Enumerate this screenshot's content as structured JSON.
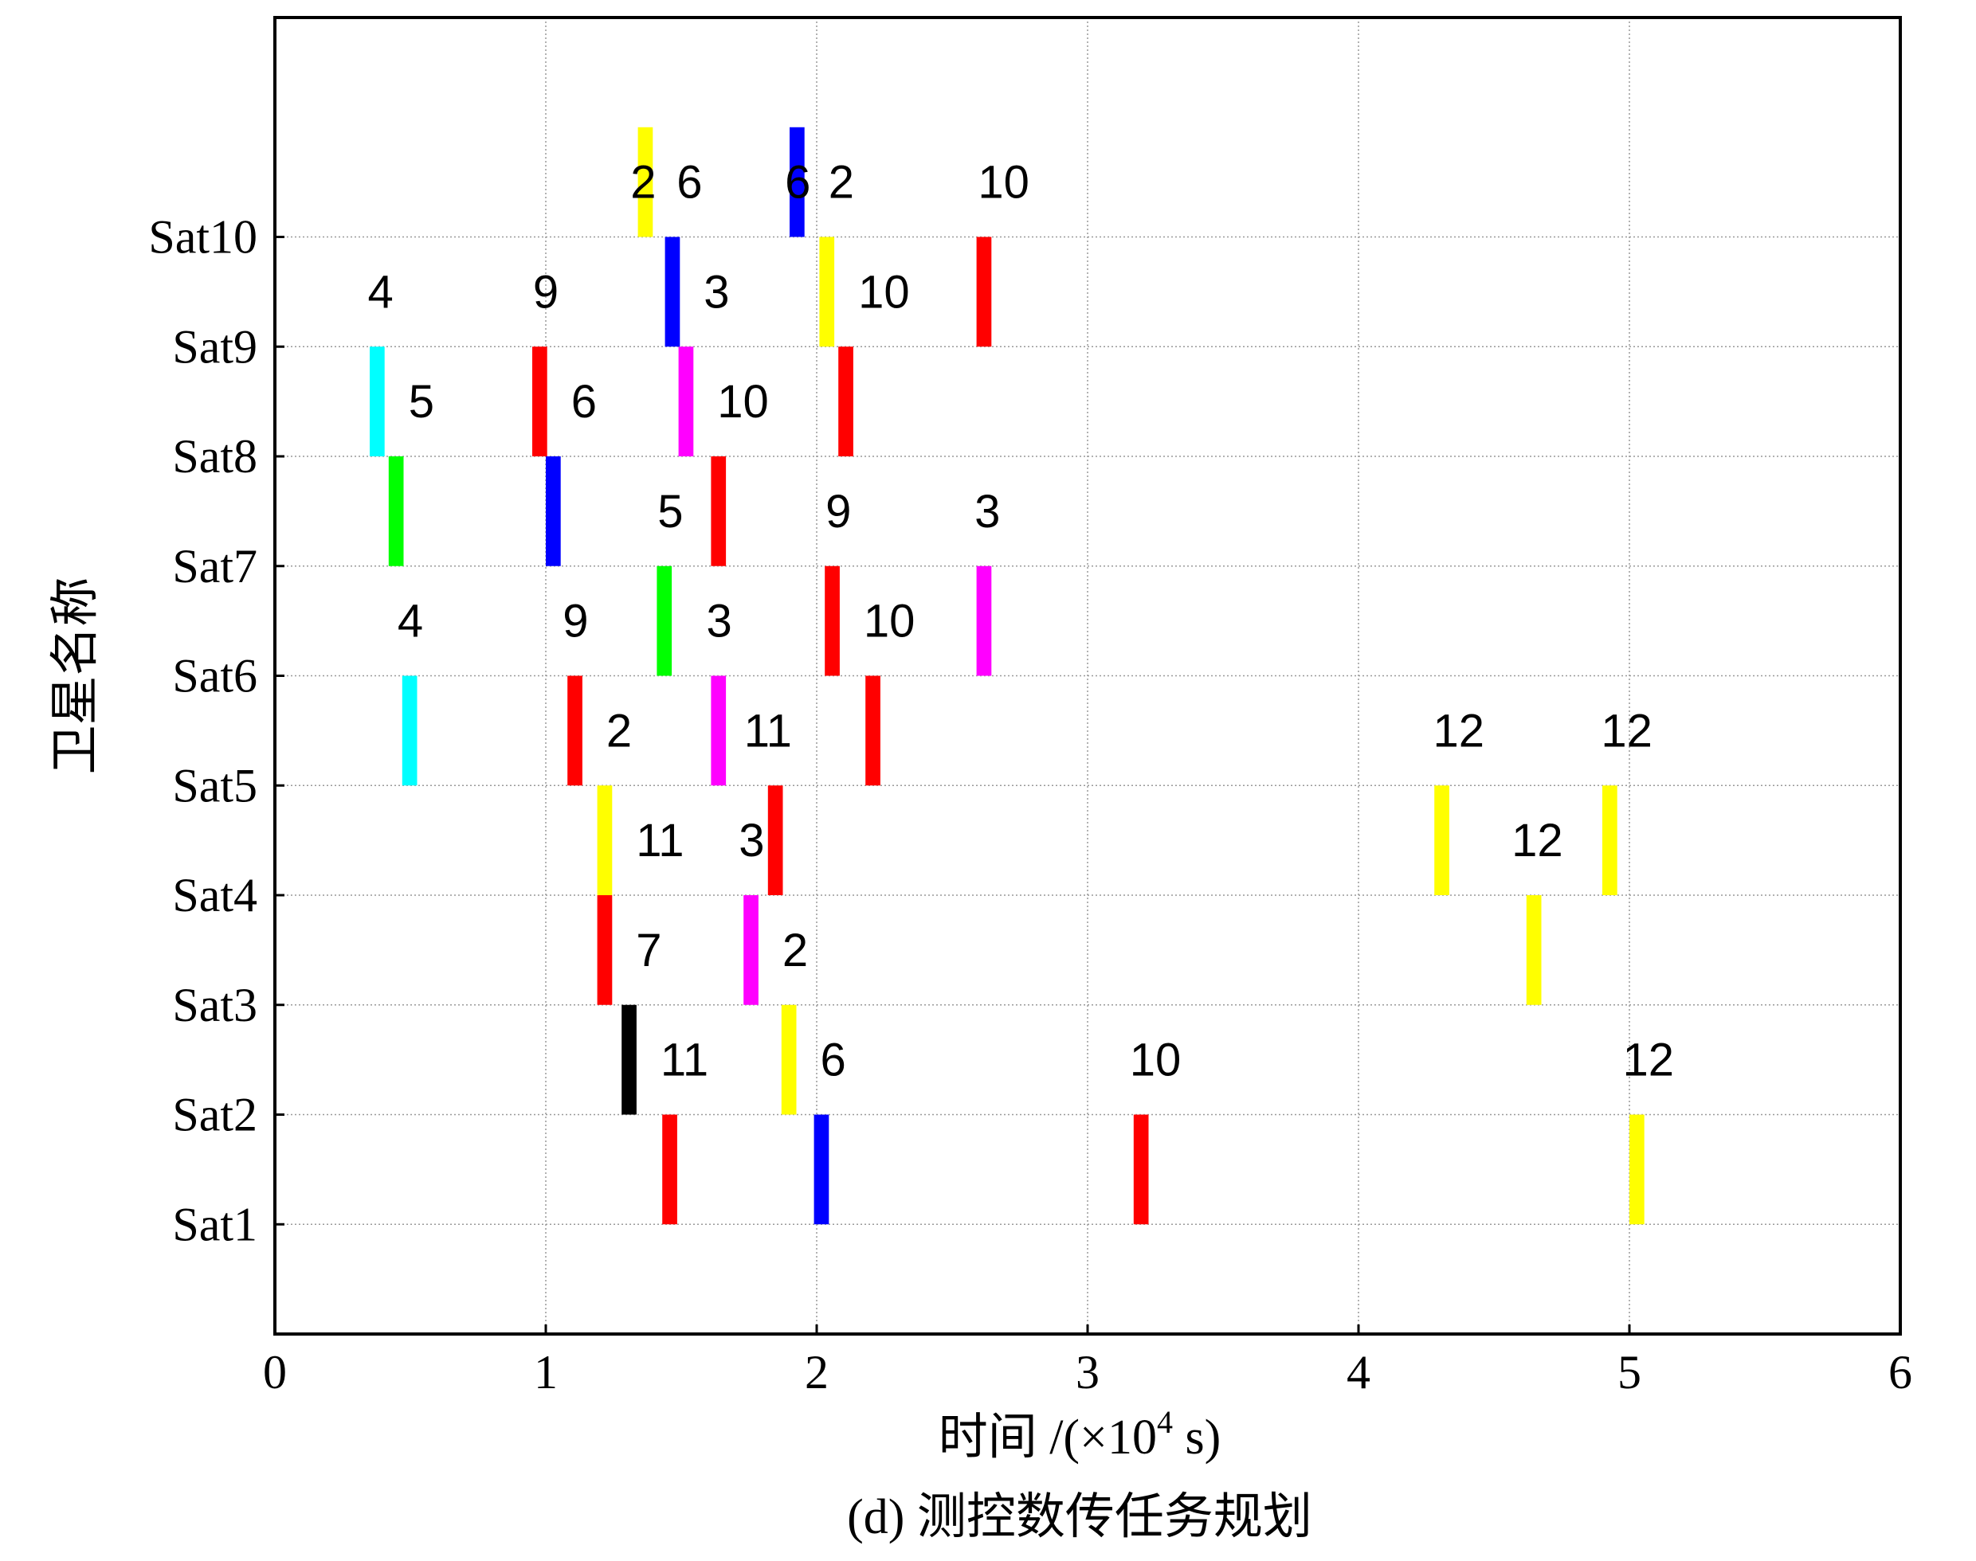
{
  "chart_data": {
    "type": "gantt",
    "caption": "(d) 测控数传任务规划",
    "xlabel": "时间 /(×10⁴ s)",
    "xlabel_main": "时间 /(×10",
    "xlabel_sup": "4",
    "xlabel_unit": " s)",
    "ylabel": "卫星名称",
    "xlim": [
      0,
      6
    ],
    "xticks": [
      0,
      1,
      2,
      3,
      4,
      5,
      6
    ],
    "ylim": [
      0,
      12
    ],
    "yticks": [
      "Sat1",
      "Sat2",
      "Sat3",
      "Sat4",
      "Sat5",
      "Sat6",
      "Sat7",
      "Sat8",
      "Sat9",
      "Sat10"
    ],
    "grid": true,
    "tasks": [
      {
        "y": 0,
        "x": 1.43,
        "color": "#ff0000"
      },
      {
        "y": 0,
        "x": 1.99,
        "color": "#0000ff"
      },
      {
        "y": 0,
        "x": 3.17,
        "color": "#ff0000"
      },
      {
        "y": 0,
        "x": 5.0,
        "color": "#ffff00"
      },
      {
        "y": 1,
        "x": 1.28,
        "color": "#000000",
        "label": "11"
      },
      {
        "y": 1,
        "x": 1.87,
        "color": "#ffff00",
        "label": "6"
      },
      {
        "y": 1,
        "x": null,
        "color": null,
        "label": "10",
        "lx": 3.25
      },
      {
        "y": 1,
        "x": null,
        "color": null,
        "label": "12",
        "lx": 5.07
      },
      {
        "y": 2,
        "x": 1.19,
        "color": "#ff0000",
        "label": "7"
      },
      {
        "y": 2,
        "x": 1.73,
        "color": "#ff00ff",
        "label": "2"
      },
      {
        "y": 2,
        "x": 4.62,
        "color": "#ffff00"
      },
      {
        "y": 3,
        "x": 1.19,
        "color": "#ffff00",
        "label": "11"
      },
      {
        "y": 3,
        "x": 1.82,
        "color": "#ff0000",
        "label": "3",
        "lx": 1.76
      },
      {
        "y": 3,
        "x": 4.28,
        "color": "#ffff00"
      },
      {
        "y": 3,
        "x": 4.9,
        "color": "#ffff00",
        "label": "12",
        "lx": 4.66
      },
      {
        "y": 4,
        "x": 0.47,
        "color": "#00ffff"
      },
      {
        "y": 4,
        "x": 1.08,
        "color": "#ff0000",
        "label": "2"
      },
      {
        "y": 4,
        "x": 1.61,
        "color": "#ff00ff",
        "label": "11",
        "lx": 1.82
      },
      {
        "y": 4,
        "x": 2.18,
        "color": "#ff0000"
      },
      {
        "y": 4,
        "x": null,
        "color": null,
        "label": "12",
        "lx": 4.37
      },
      {
        "y": 4,
        "x": null,
        "color": null,
        "label": "12",
        "lx": 4.99
      },
      {
        "y": 5,
        "x": 1.41,
        "color": "#00ff00",
        "label": "3",
        "lx": 1.64
      },
      {
        "y": 5,
        "x": 2.03,
        "color": "#ff0000",
        "label": "10"
      },
      {
        "y": 5,
        "x": 2.59,
        "color": "#ff00ff"
      },
      {
        "y": 5,
        "x": null,
        "color": null,
        "label": "4",
        "lx": 0.5
      },
      {
        "y": 5,
        "x": null,
        "color": null,
        "label": "9",
        "lx": 1.11
      },
      {
        "y": 6,
        "x": 0.42,
        "color": "#00ff00"
      },
      {
        "y": 6,
        "x": 1.0,
        "color": "#0000ff"
      },
      {
        "y": 6,
        "x": 1.61,
        "color": "#ff0000",
        "label": "5",
        "lx": 1.46
      },
      {
        "y": 6,
        "x": null,
        "color": null,
        "label": "9",
        "lx": 2.08
      },
      {
        "y": 6,
        "x": null,
        "color": null,
        "label": "3",
        "lx": 2.63
      },
      {
        "y": 7,
        "x": 0.35,
        "color": "#00ffff",
        "label": "5"
      },
      {
        "y": 7,
        "x": 0.95,
        "color": "#ff0000",
        "label": "6"
      },
      {
        "y": 7,
        "x": 1.49,
        "color": "#ff00ff",
        "label": "10"
      },
      {
        "y": 7,
        "x": 2.08,
        "color": "#ff0000"
      },
      {
        "y": 8,
        "x": 1.44,
        "color": "#0000ff",
        "label": "3"
      },
      {
        "y": 8,
        "x": 2.01,
        "color": "#ffff00",
        "label": "10"
      },
      {
        "y": 8,
        "x": 2.59,
        "color": "#ff0000"
      },
      {
        "y": 8,
        "x": null,
        "color": null,
        "label": "4",
        "lx": 0.39
      },
      {
        "y": 8,
        "x": null,
        "color": null,
        "label": "9",
        "lx": 1.0
      },
      {
        "y": 9,
        "x": 1.34,
        "color": "#ffff00",
        "label": "6"
      },
      {
        "y": 9,
        "x": 1.9,
        "color": "#0000ff",
        "label": "2"
      },
      {
        "y": 9,
        "x": null,
        "color": null,
        "label": "10",
        "lx": 2.69
      },
      {
        "y": 9,
        "x": null,
        "color": null,
        "label": "2",
        "lx": 1.36
      },
      {
        "y": 9,
        "x": null,
        "color": null,
        "label": "6",
        "lx": 1.93
      }
    ]
  }
}
